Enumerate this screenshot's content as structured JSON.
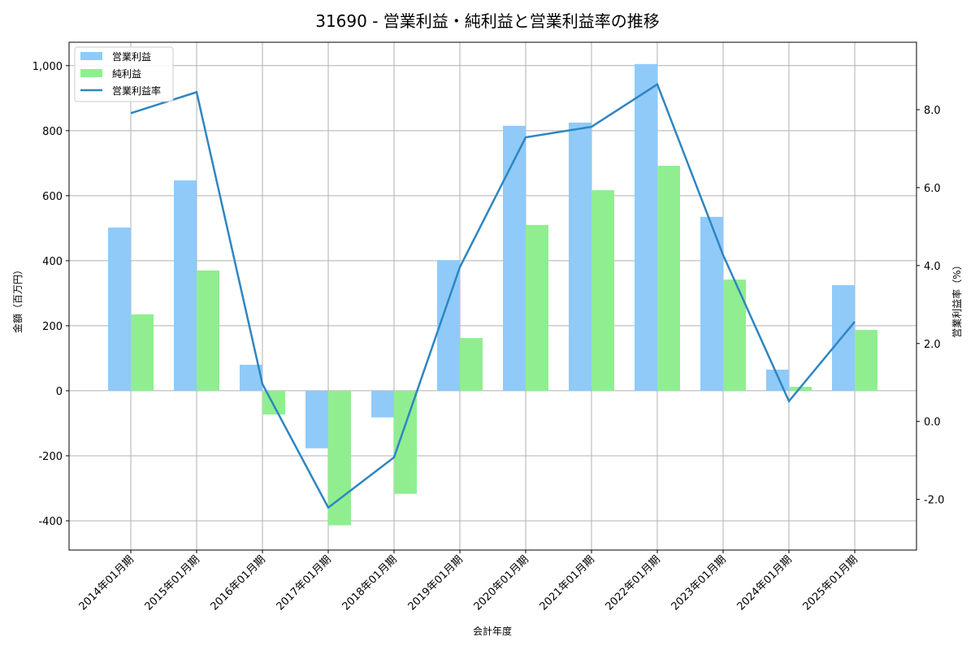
{
  "chart_data": {
    "type": "bar",
    "title": "31690 - 営業利益・純利益と営業利益率の推移",
    "xlabel": "会計年度",
    "ylabel": "金額（百万円）",
    "y2label": "営業利益率（%）",
    "categories": [
      "2014年01月期",
      "2015年01月期",
      "2016年01月期",
      "2017年01月期",
      "2018年01月期",
      "2019年01月期",
      "2020年01月期",
      "2021年01月期",
      "2022年01月期",
      "2023年01月期",
      "2024年01月期",
      "2025年01月期"
    ],
    "series": [
      {
        "name": "営業利益",
        "type": "bar",
        "axis": "left",
        "color": "#90caf9",
        "values": [
          502,
          647,
          80,
          -177,
          -82,
          402,
          815,
          825,
          1005,
          535,
          65,
          325
        ]
      },
      {
        "name": "純利益",
        "type": "bar",
        "axis": "left",
        "color": "#90ee90",
        "values": [
          235,
          370,
          -73,
          -414,
          -317,
          162,
          510,
          617,
          692,
          342,
          12,
          187
        ]
      },
      {
        "name": "営業利益率",
        "type": "line",
        "axis": "right",
        "color": "#2e86c1",
        "values": [
          7.91,
          8.45,
          0.96,
          -2.21,
          -0.92,
          3.96,
          7.29,
          7.56,
          8.65,
          4.27,
          0.52,
          2.56
        ]
      }
    ],
    "ylim": [
      -490,
      1072
    ],
    "y2lim": [
      -3.3,
      9.73
    ],
    "yticks": [
      -400,
      -200,
      0,
      200,
      400,
      600,
      800,
      1000
    ],
    "ytick_labels": [
      "-400",
      "-200",
      "0",
      "200",
      "400",
      "600",
      "800",
      "1,000"
    ],
    "y2ticks": [
      -2.0,
      0.0,
      2.0,
      4.0,
      6.0,
      8.0
    ],
    "y2tick_labels": [
      "-2.0",
      "0.0",
      "2.0",
      "4.0",
      "6.0",
      "8.0"
    ],
    "grid": true,
    "legend_position": "upper left"
  }
}
